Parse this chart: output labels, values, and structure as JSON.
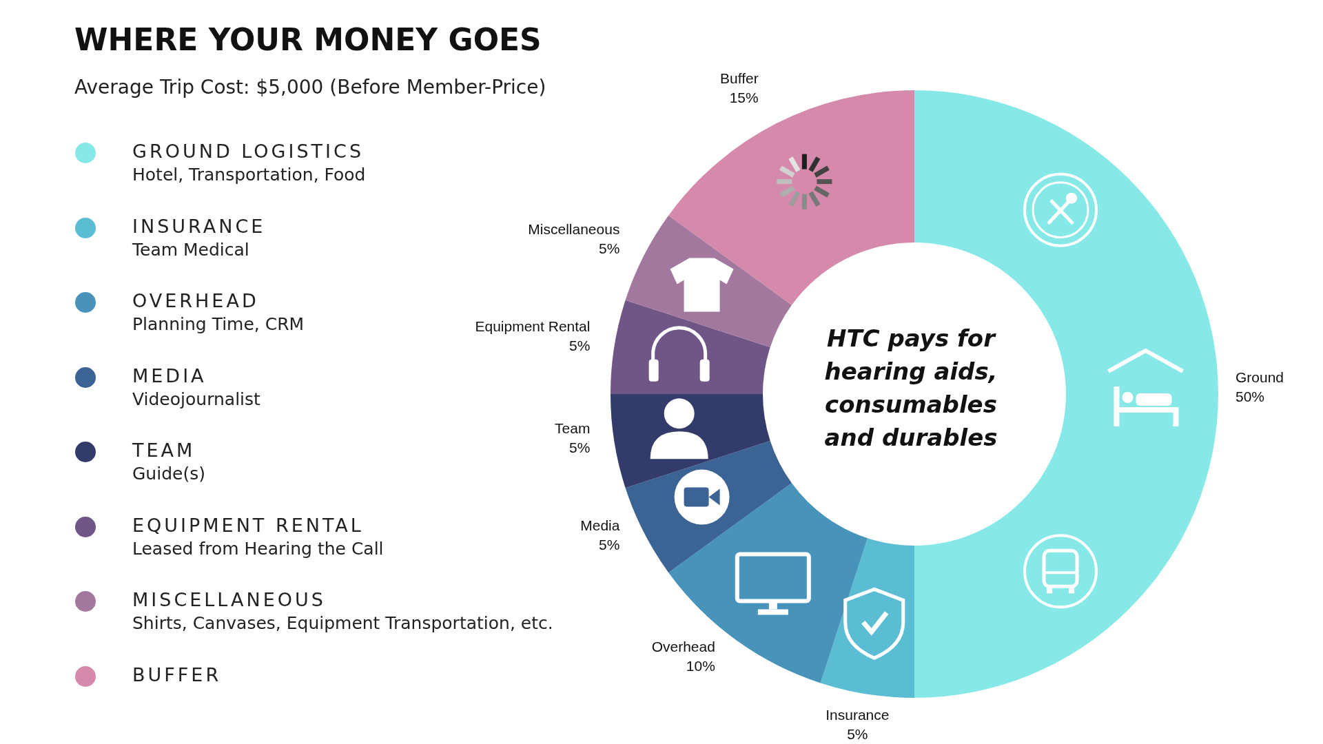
{
  "chart_data": {
    "type": "donut",
    "title": "WHERE YOUR MONEY GOES",
    "subtitle": "Average Trip Cost: $5,000 (Before Member-Price)",
    "categories": [
      "Ground",
      "Insurance",
      "Overhead",
      "Media",
      "Team",
      "Equipment Rental",
      "Miscellaneous",
      "Buffer"
    ],
    "values": [
      50,
      5,
      10,
      5,
      5,
      5,
      5,
      15
    ],
    "value_labels": [
      "50%",
      "5%",
      "10%",
      "5%",
      "5%",
      "5%",
      "5%",
      "15%"
    ],
    "colors": [
      "#87e8e8",
      "#5bbdd4",
      "#4893b9",
      "#3b6494",
      "#333b6b",
      "#6f5686",
      "#a3789e",
      "#d589ab"
    ],
    "annotations": [
      "HTC pays for hearing aids, consumables and durables",
      "GROUND LOGISTICS\nHotel, Transportation, Food",
      "INSURANCE\nTeam Medical",
      "OVERHEAD\nPlanning Time, CRM",
      "MEDIA\nVideojournalist",
      "TEAM\nGuide(s)",
      "EQUIPMENT RENTAL\nLeased from Hearing the Call",
      "MISCELLANEOUS\nShirts, Canvases, Equipment Transportation, etc.",
      "BUFFER"
    ]
  }
}
